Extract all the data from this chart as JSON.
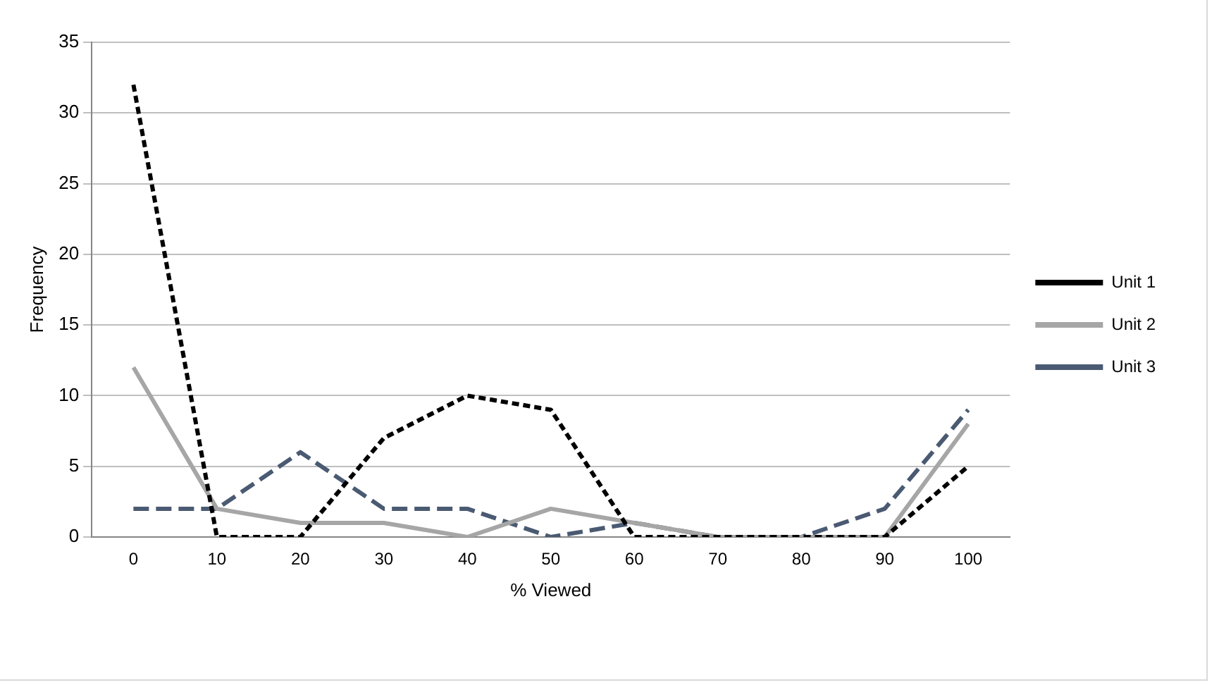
{
  "chart_data": {
    "type": "line",
    "xlabel": "% Viewed",
    "ylabel": "Frequency",
    "categories": [
      "0",
      "10",
      "20",
      "30",
      "40",
      "50",
      "60",
      "70",
      "80",
      "90",
      "100"
    ],
    "series": [
      {
        "name": "Unit 1",
        "color": "#000000",
        "line_style": "dotted",
        "values": [
          32,
          0,
          0,
          7,
          10,
          9,
          0,
          0,
          0,
          0,
          5
        ]
      },
      {
        "name": "Unit 2",
        "color": "#a6a6a6",
        "line_style": "solid",
        "values": [
          12,
          2,
          1,
          1,
          0,
          2,
          1,
          0,
          0,
          0,
          8
        ]
      },
      {
        "name": "Unit 3",
        "color": "#4a5a72",
        "line_style": "dashed",
        "values": [
          2,
          2,
          6,
          2,
          2,
          0,
          1,
          0,
          0,
          2,
          9
        ]
      }
    ],
    "ylim": [
      0,
      35
    ],
    "yticks": [
      0,
      5,
      10,
      15,
      20,
      25,
      30,
      35
    ],
    "grid": "y",
    "legend": "right",
    "marker": "none"
  }
}
